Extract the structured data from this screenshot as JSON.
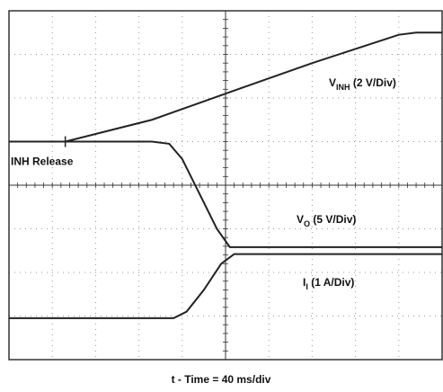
{
  "chart_data": {
    "type": "line",
    "xlim": [
      0,
      10
    ],
    "ylim": [
      0,
      8
    ],
    "xticks": [
      0,
      1,
      2,
      3,
      4,
      5,
      6,
      7,
      8,
      9,
      10
    ],
    "yticks": [
      0,
      1,
      2,
      3,
      4,
      5,
      6,
      7,
      8
    ],
    "grid": true,
    "x_label": "t - Time = 40 ms/div",
    "annotations": [
      {
        "text": "INH Release",
        "x": 1.3,
        "y": 5.0
      }
    ],
    "series": [
      {
        "label": {
          "main": "V",
          "sub": "INH",
          "rest": " (2 V/Div)"
        },
        "color": "#222222",
        "x": [
          0,
          1.3,
          2.3,
          3.3,
          5.0,
          7.0,
          9.0,
          9.4,
          10
        ],
        "values": [
          5.0,
          5.0,
          5.25,
          5.5,
          6.1,
          6.8,
          7.45,
          7.5,
          7.5
        ]
      },
      {
        "label": {
          "main": "V",
          "sub": "O",
          "rest": " (5 V/Div)"
        },
        "color": "#222222",
        "x": [
          0,
          3.3,
          3.7,
          4.0,
          4.4,
          4.8,
          5.1,
          10
        ],
        "values": [
          5.0,
          5.0,
          4.95,
          4.6,
          3.8,
          3.0,
          2.58,
          2.58
        ]
      },
      {
        "label": {
          "main": "I",
          "sub": "I",
          "rest": " (1 A/Div)"
        },
        "color": "#222222",
        "x": [
          0,
          3.8,
          4.1,
          4.5,
          4.9,
          5.2,
          10
        ],
        "values": [
          0.95,
          0.95,
          1.1,
          1.6,
          2.2,
          2.42,
          2.42
        ]
      }
    ]
  }
}
